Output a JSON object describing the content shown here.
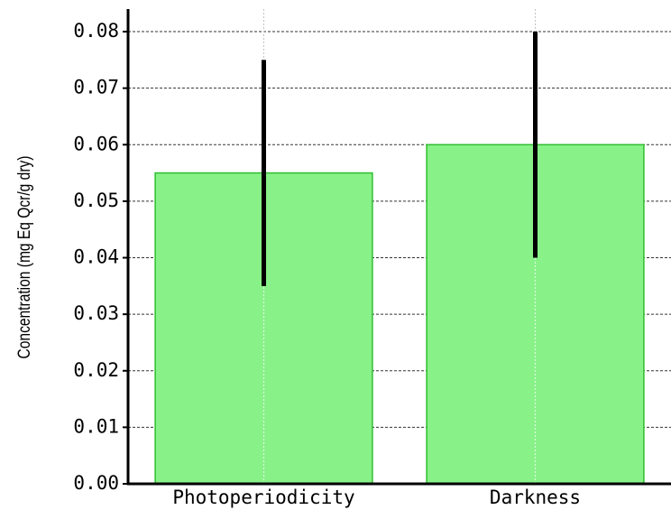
{
  "chart_data": {
    "type": "bar",
    "ylabel": "Concentration (mg Eq Qcr/g dry)",
    "categories": [
      "Photoperiodicity",
      "Darkness"
    ],
    "values": [
      0.055,
      0.06
    ],
    "errors": [
      0.02,
      0.02
    ],
    "color": "#88f288",
    "edgecolor": "#2fbf2f",
    "error_color": "#000000",
    "ylim": [
      0,
      0.084
    ],
    "yticks": [
      {
        "value": 0,
        "label": "0.00"
      },
      0.01,
      0.02,
      0.03,
      0.04,
      0.05,
      0.06,
      0.07,
      0.08
    ],
    "grid": true
  }
}
